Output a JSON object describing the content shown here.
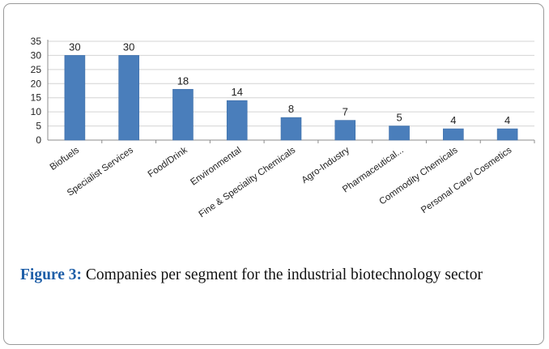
{
  "colors": {
    "bar": "#4a7ebb",
    "caption_label": "#1f5fa8"
  },
  "chart_data": {
    "type": "bar",
    "categories": [
      "Biofuels",
      "Specialist Services",
      "Food/Drink",
      "Environmental",
      "Fine & Speciality Chemicals",
      "Agro-Industry",
      "Pharmaceutical...",
      "Commodity Chemicals",
      "Personal Care/ Cosmetics"
    ],
    "values": [
      30,
      30,
      18,
      14,
      8,
      7,
      5,
      4,
      4
    ],
    "yticks": [
      0,
      5,
      10,
      15,
      20,
      25,
      30,
      35
    ],
    "ylim": [
      0,
      35
    ],
    "grid": true,
    "data_labels": true
  },
  "caption": {
    "label": "Figure 3:",
    "text": " Companies per segment for the industrial biotechnology sector"
  }
}
